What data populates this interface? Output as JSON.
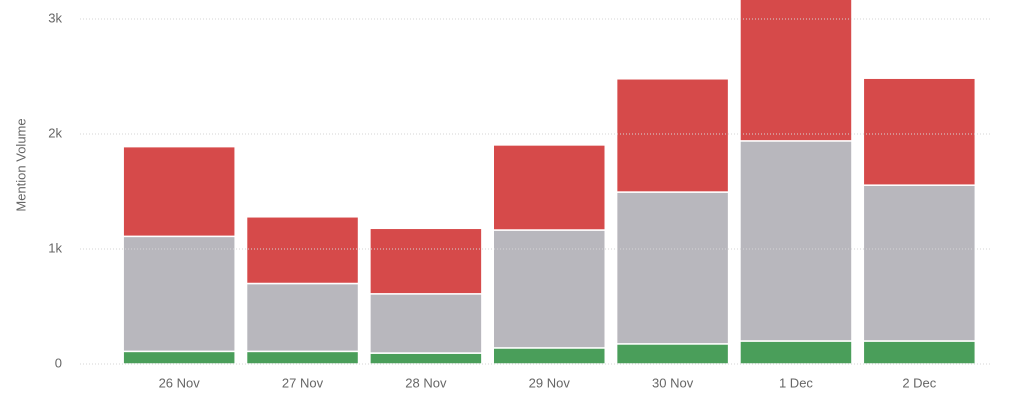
{
  "chart_data": {
    "type": "stacked_bar",
    "y_label": "Mention Volume",
    "categories": [
      "26 Nov",
      "27 Nov",
      "28 Nov",
      "29 Nov",
      "30 Nov",
      "1 Dec",
      "2 Dec"
    ],
    "series": [
      {
        "color": "#4a9e5a",
        "values": [
          110,
          110,
          95,
          140,
          175,
          200,
          200
        ]
      },
      {
        "color": "#b8b7bd",
        "values": [
          1000,
          590,
          515,
          1025,
          1320,
          1740,
          1355
        ]
      },
      {
        "color": "#d64a4a",
        "values": [
          780,
          580,
          570,
          740,
          985,
          1260,
          930
        ]
      }
    ],
    "ylim": [
      0,
      3165
    ],
    "yticks": [
      0,
      {
        "value": 1000,
        "label": "1k"
      },
      {
        "value": 2000,
        "label": "2k"
      },
      {
        "value": 3000,
        "label": "3k"
      }
    ],
    "grid": true
  }
}
